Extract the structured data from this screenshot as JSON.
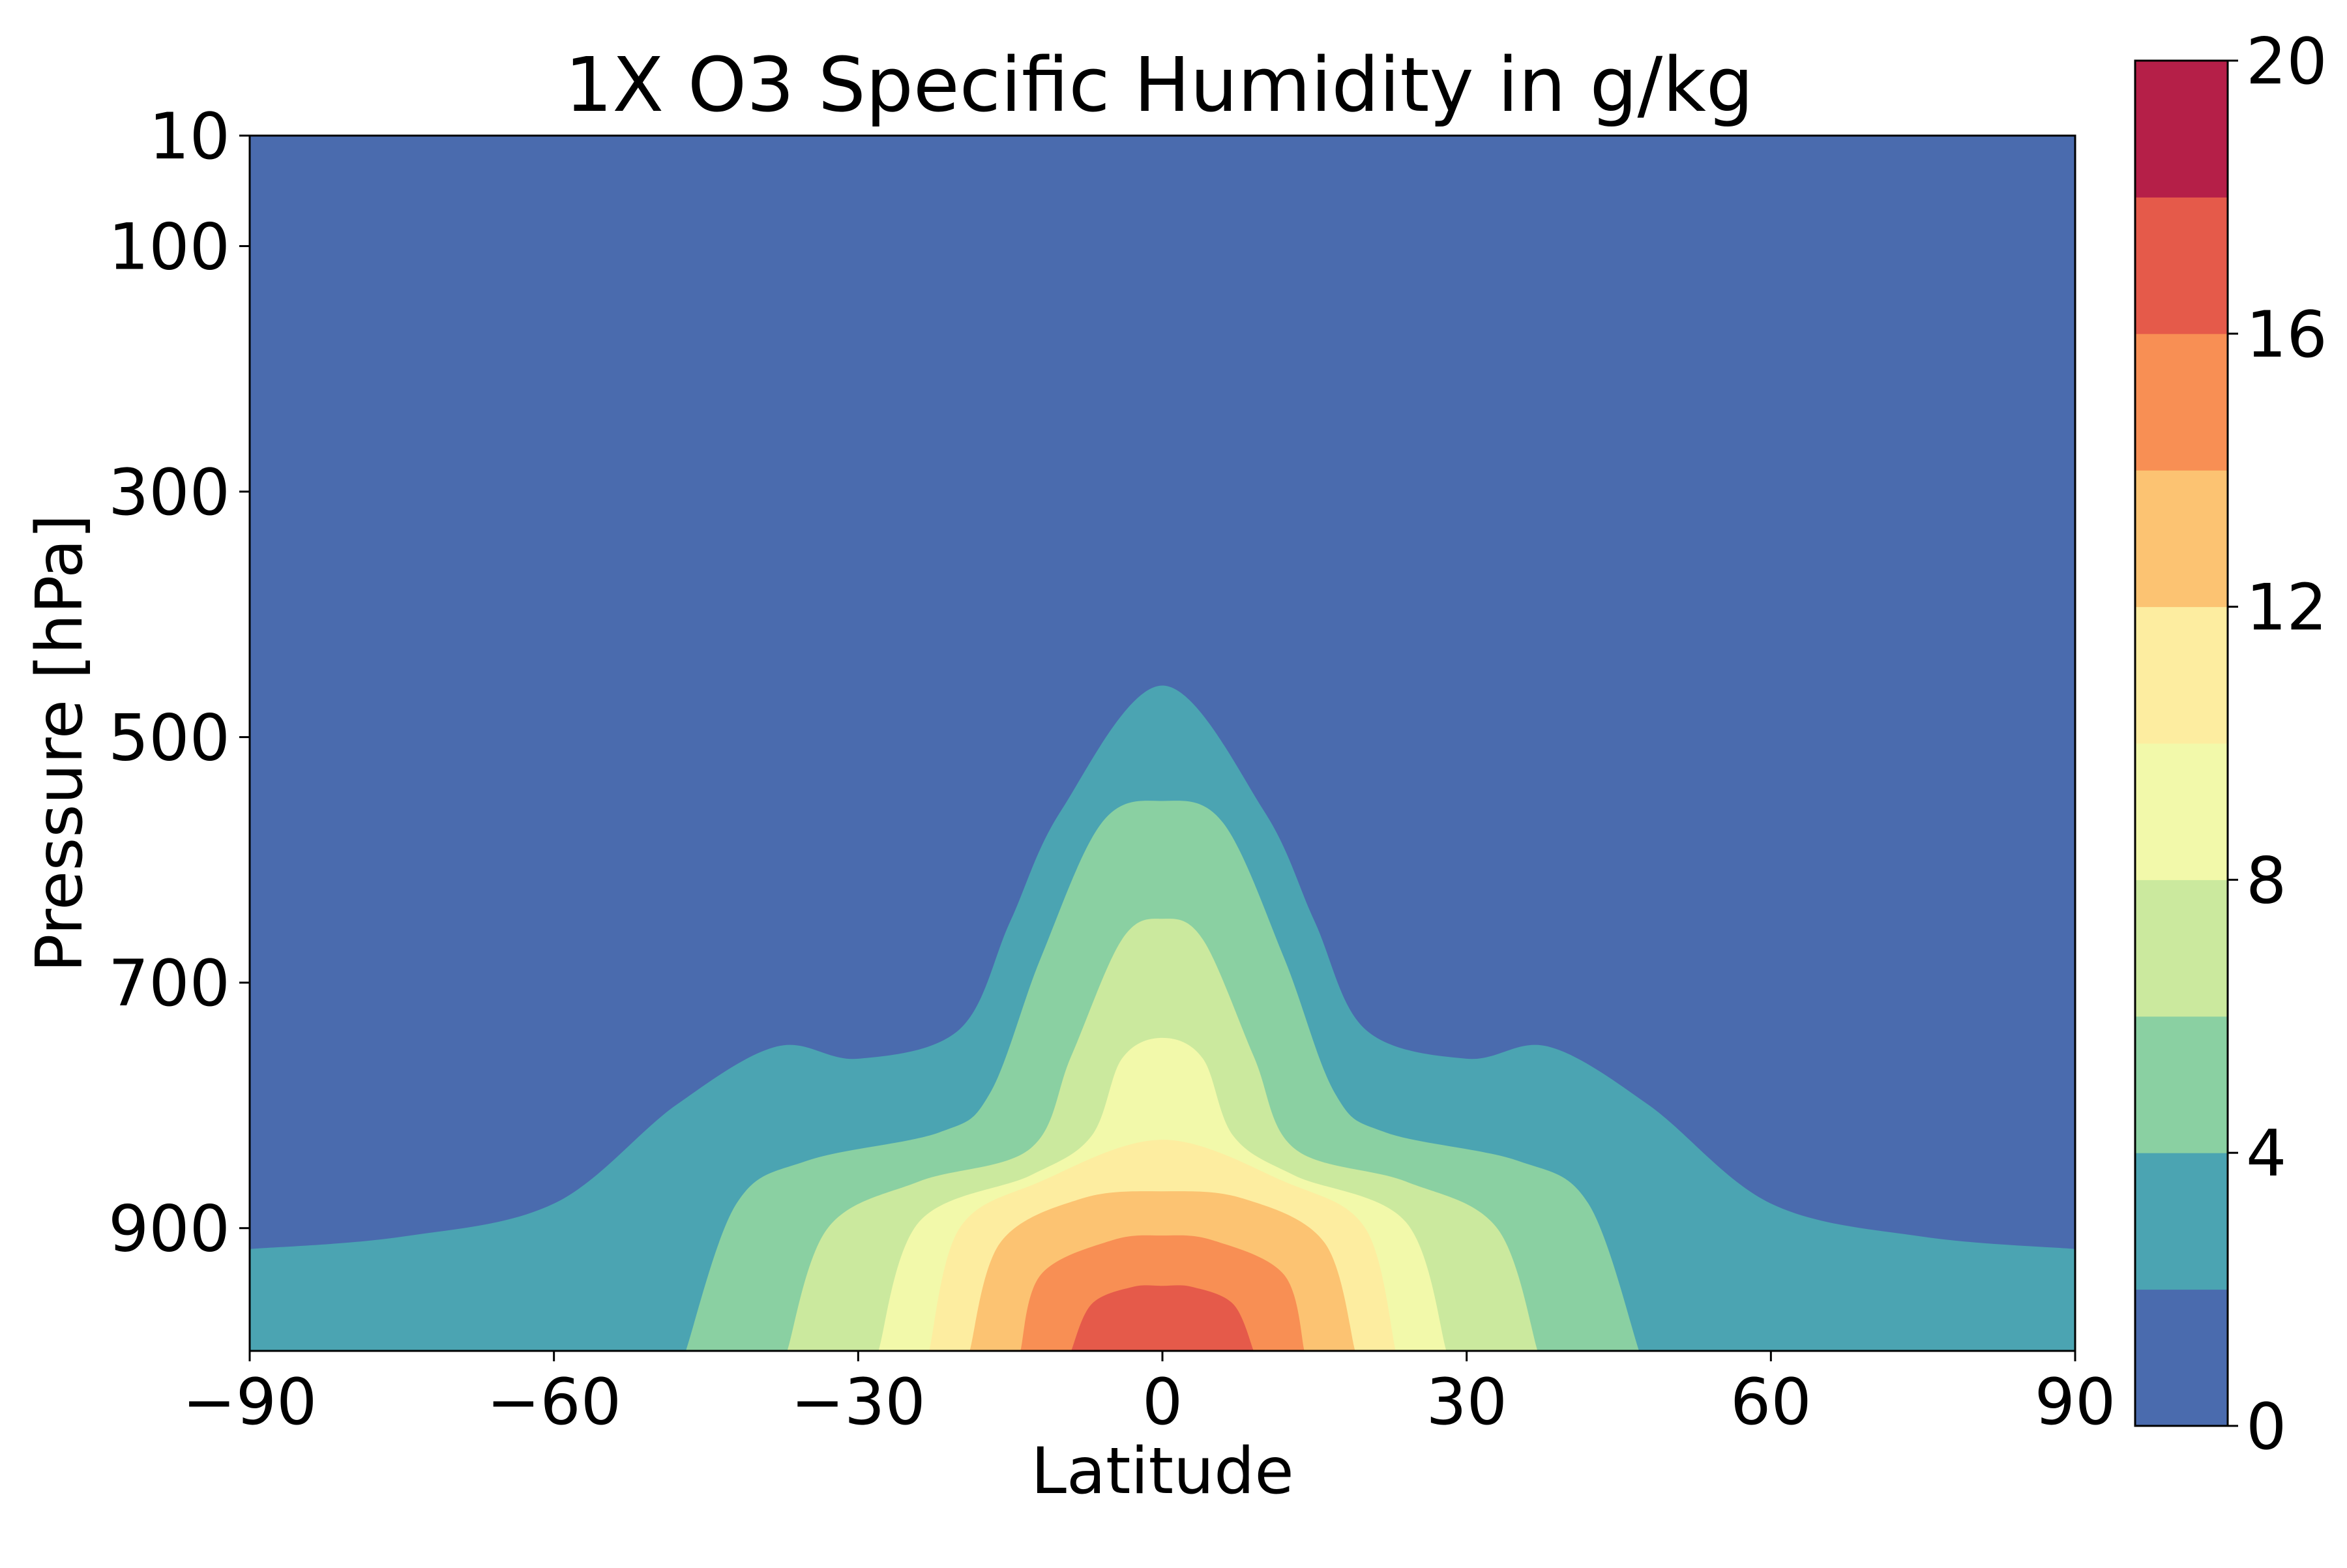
{
  "chart_data": {
    "type": "contourf",
    "title": "1X O3 Specific Humidity in g/kg",
    "xlabel": "Latitude",
    "ylabel": "Pressure [hPa]",
    "xlim": [
      -90,
      90
    ],
    "ylim": [
      1000,
      10
    ],
    "x_ticks": [
      -90,
      -60,
      -30,
      0,
      30,
      60,
      90
    ],
    "x_tick_labels": [
      "−90",
      "−60",
      "−30",
      "0",
      "30",
      "60",
      "90"
    ],
    "y_ticks": [
      10,
      100,
      300,
      500,
      700,
      900
    ],
    "y_tick_labels": [
      "10",
      "100",
      "300",
      "500",
      "700",
      "900"
    ],
    "colorbar": {
      "levels": [
        0,
        2,
        4,
        6,
        8,
        10,
        12,
        14,
        16,
        18,
        20
      ],
      "tick_values": [
        0,
        4,
        8,
        12,
        16,
        20
      ],
      "tick_labels": [
        "0",
        "4",
        "8",
        "12",
        "16",
        "20"
      ],
      "colors": [
        "#4a6bae",
        "#4ba4b2",
        "#8ad0a2",
        "#cbe99e",
        "#f2f9aa",
        "#fdeda0",
        "#fcc372",
        "#f88f54",
        "#e55a4a",
        "#b51f48"
      ]
    },
    "contours": [
      {
        "level": 2,
        "points": [
          [
            -90,
            917
          ],
          [
            -75,
            907
          ],
          [
            -60,
            880
          ],
          [
            -48,
            800
          ],
          [
            -38,
            752
          ],
          [
            -30,
            762
          ],
          [
            -20,
            738
          ],
          [
            -15,
            650
          ],
          [
            -10,
            560
          ],
          [
            0,
            458
          ],
          [
            10,
            560
          ],
          [
            15,
            650
          ],
          [
            20,
            738
          ],
          [
            30,
            762
          ],
          [
            38,
            752
          ],
          [
            48,
            800
          ],
          [
            60,
            880
          ],
          [
            75,
            907
          ],
          [
            90,
            917
          ]
        ]
      },
      {
        "level": 4,
        "points": [
          [
            -47,
            1000
          ],
          [
            -42,
            880
          ],
          [
            -35,
            845
          ],
          [
            -22,
            822
          ],
          [
            -17,
            790
          ],
          [
            -12,
            680
          ],
          [
            -6,
            570
          ],
          [
            0,
            552
          ],
          [
            6,
            570
          ],
          [
            12,
            680
          ],
          [
            17,
            790
          ],
          [
            22,
            822
          ],
          [
            35,
            845
          ],
          [
            42,
            880
          ],
          [
            47,
            1000
          ]
        ]
      },
      {
        "level": 6,
        "points": [
          [
            -37,
            1000
          ],
          [
            -33,
            900
          ],
          [
            -24,
            862
          ],
          [
            -13,
            835
          ],
          [
            -9,
            760
          ],
          [
            -4,
            665
          ],
          [
            0,
            648
          ],
          [
            4,
            665
          ],
          [
            9,
            760
          ],
          [
            13,
            835
          ],
          [
            24,
            862
          ],
          [
            33,
            900
          ],
          [
            37,
            1000
          ]
        ]
      },
      {
        "level": 8,
        "points": [
          [
            -28,
            1000
          ],
          [
            -24,
            895
          ],
          [
            -13,
            857
          ],
          [
            -7,
            825
          ],
          [
            -4,
            762
          ],
          [
            0,
            745
          ],
          [
            4,
            762
          ],
          [
            7,
            825
          ],
          [
            13,
            857
          ],
          [
            24,
            895
          ],
          [
            28,
            1000
          ]
        ]
      },
      {
        "level": 10,
        "points": [
          [
            -23,
            1000
          ],
          [
            -20,
            900
          ],
          [
            -12,
            862
          ],
          [
            0,
            828
          ],
          [
            12,
            862
          ],
          [
            20,
            900
          ],
          [
            23,
            1000
          ]
        ]
      },
      {
        "level": 12,
        "points": [
          [
            -19,
            1000
          ],
          [
            -16,
            912
          ],
          [
            -8,
            876
          ],
          [
            0,
            870
          ],
          [
            8,
            876
          ],
          [
            16,
            912
          ],
          [
            19,
            1000
          ]
        ]
      },
      {
        "level": 14,
        "points": [
          [
            -14,
            1000
          ],
          [
            -12,
            938
          ],
          [
            -5,
            910
          ],
          [
            0,
            906
          ],
          [
            5,
            910
          ],
          [
            12,
            938
          ],
          [
            14,
            1000
          ]
        ]
      },
      {
        "level": 16,
        "points": [
          [
            -9,
            1000
          ],
          [
            -7,
            962
          ],
          [
            -3,
            948
          ],
          [
            0,
            947
          ],
          [
            3,
            948
          ],
          [
            7,
            962
          ],
          [
            9,
            1000
          ]
        ]
      }
    ]
  }
}
